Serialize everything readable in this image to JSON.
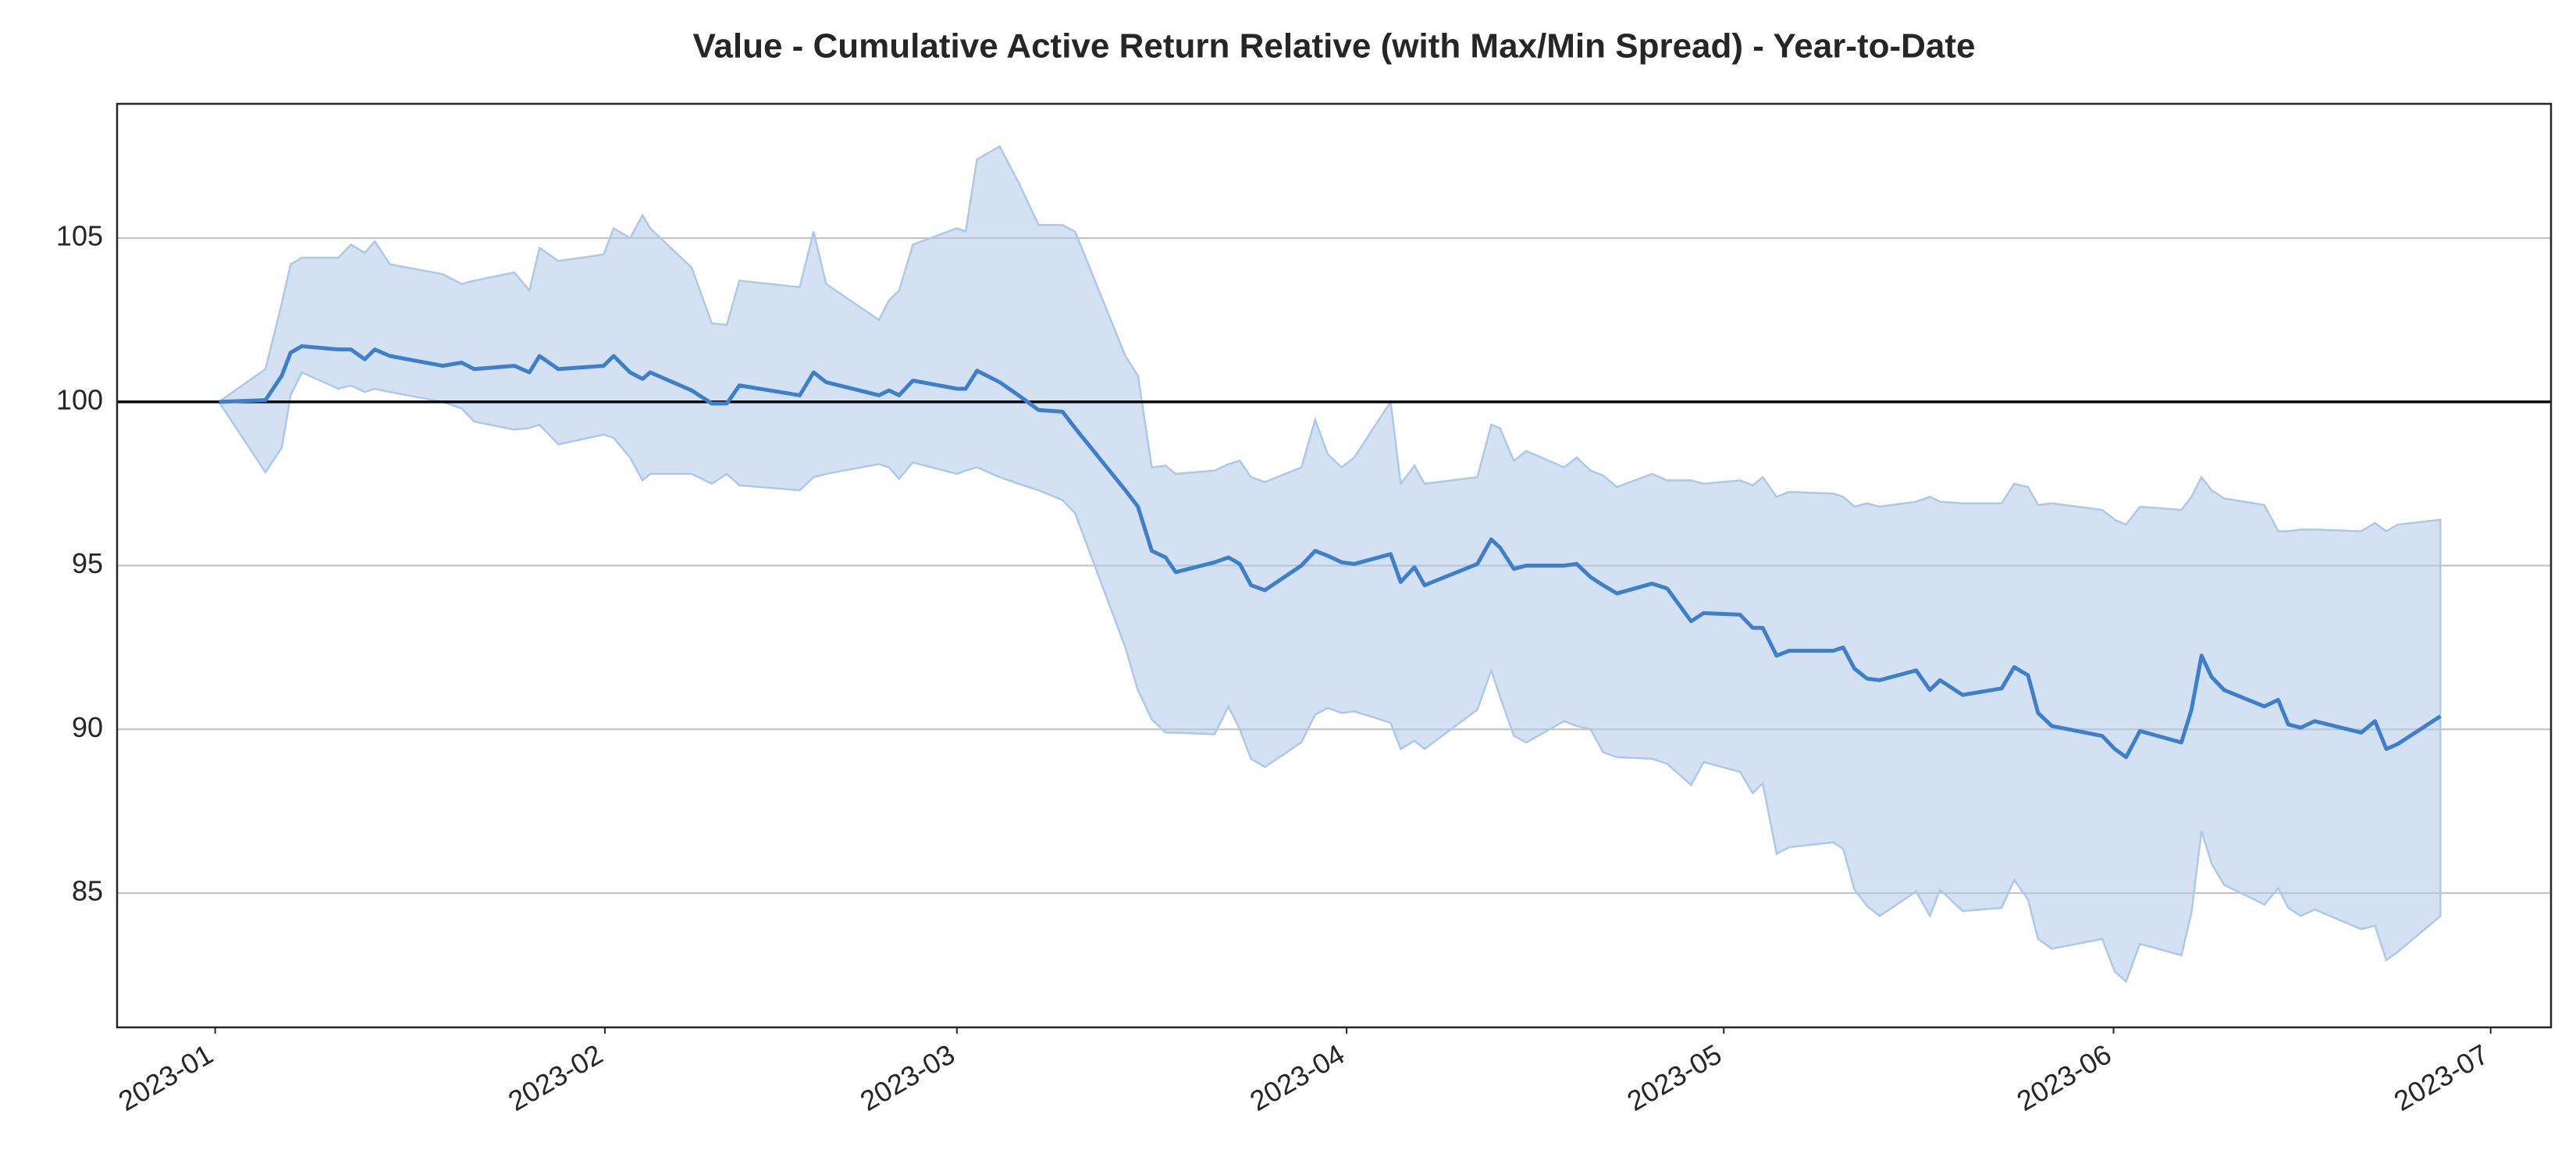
{
  "chart_data": {
    "type": "line",
    "title": "Value - Cumulative Active Return Relative (with Max/Min Spread) - Year-to-Date",
    "x": [
      0.3,
      4,
      5.3,
      6,
      6.9,
      9.8,
      10.8,
      11.9,
      12.7,
      13.9,
      18.1,
      19.6,
      20.6,
      23.8,
      25,
      25.8,
      27.3,
      30.9,
      31.7,
      33,
      34,
      34.6,
      37.9,
      39.5,
      40.7,
      41.7,
      46.5,
      47.6,
      48.6,
      52.8,
      53.6,
      54.4,
      55.5,
      59,
      59.7,
      60.6,
      62.4,
      63.9,
      65.5,
      67.4,
      68.4,
      72.4,
      73.4,
      74.5,
      75.6,
      76.4,
      79.5,
      80.6,
      81.5,
      82.4,
      83.5,
      86.4,
      87.5,
      88.5,
      89.6,
      90.6,
      93.5,
      94.3,
      95.4,
      96.2,
      100.4,
      101.5,
      102.2,
      103.3,
      104.3,
      107.3,
      108.3,
      109.4,
      110.4,
      111.5,
      114.3,
      115.5,
      117.4,
      118.4,
      121.3,
      122.3,
      123.1,
      124.2,
      125.2,
      128.7,
      129.5,
      130.4,
      131.4,
      132.4,
      135.3,
      136.4,
      137.2,
      139,
      142.1,
      143.1,
      144.2,
      145,
      146.1,
      150.1,
      151.1,
      152,
      153.1,
      156.4,
      157.2,
      158,
      158.8,
      159.8,
      163,
      164.1,
      164.9,
      165.9,
      167,
      170.7,
      171.8,
      172.7,
      173.6,
      177
    ],
    "series": [
      {
        "color": "#3f7fca",
        "values": [
          100,
          100.05,
          100.8,
          101.5,
          101.7,
          101.6,
          101.6,
          101.3,
          101.6,
          101.4,
          101.1,
          101.2,
          101.0,
          101.1,
          100.9,
          101.4,
          101.0,
          101.1,
          101.4,
          100.9,
          100.7,
          100.9,
          100.35,
          99.95,
          99.95,
          100.5,
          100.2,
          100.9,
          100.6,
          100.2,
          100.35,
          100.2,
          100.65,
          100.4,
          100.4,
          100.95,
          100.6,
          100.2,
          99.75,
          99.7,
          99.2,
          97.3,
          96.8,
          95.45,
          95.25,
          94.8,
          95.1,
          95.25,
          95.05,
          94.4,
          94.25,
          95.0,
          95.45,
          95.3,
          95.1,
          95.05,
          95.35,
          94.5,
          94.95,
          94.4,
          95.05,
          95.8,
          95.55,
          94.9,
          95.0,
          95.0,
          95.05,
          94.65,
          94.4,
          94.15,
          94.45,
          94.3,
          93.3,
          93.55,
          93.5,
          93.1,
          93.1,
          92.25,
          92.4,
          92.4,
          92.5,
          91.85,
          91.55,
          91.5,
          91.8,
          91.2,
          91.5,
          91.05,
          91.25,
          91.9,
          91.65,
          90.5,
          90.1,
          89.8,
          89.4,
          89.15,
          89.95,
          89.6,
          90.6,
          92.25,
          91.6,
          91.2,
          90.7,
          90.9,
          90.15,
          90.05,
          90.25,
          89.9,
          90.25,
          89.4,
          89.55,
          90.4
        ]
      }
    ],
    "band": {
      "color": "#aec8e8",
      "upper": [
        100,
        101.0,
        103.0,
        104.2,
        104.4,
        104.4,
        104.8,
        104.55,
        104.9,
        104.2,
        103.9,
        103.6,
        103.7,
        103.95,
        103.4,
        104.7,
        104.3,
        104.5,
        105.3,
        105.0,
        105.7,
        105.3,
        104.1,
        102.4,
        102.35,
        103.7,
        103.5,
        105.2,
        103.6,
        102.5,
        103.1,
        103.4,
        104.8,
        105.3,
        105.2,
        107.4,
        107.8,
        106.7,
        105.4,
        105.4,
        105.2,
        101.4,
        100.8,
        98.0,
        98.05,
        97.8,
        97.9,
        98.1,
        98.2,
        97.7,
        97.55,
        98.0,
        99.45,
        98.4,
        98.0,
        98.3,
        100.0,
        97.5,
        98.05,
        97.5,
        97.7,
        99.3,
        99.2,
        98.2,
        98.5,
        98.0,
        98.3,
        97.9,
        97.75,
        97.4,
        97.8,
        97.6,
        97.6,
        97.5,
        97.6,
        97.45,
        97.7,
        97.1,
        97.25,
        97.2,
        97.1,
        96.8,
        96.9,
        96.8,
        96.95,
        97.1,
        96.95,
        96.9,
        96.9,
        97.5,
        97.4,
        96.85,
        96.9,
        96.7,
        96.4,
        96.25,
        96.8,
        96.7,
        97.1,
        97.7,
        97.3,
        97.05,
        96.85,
        96.05,
        96.05,
        96.1,
        96.1,
        96.05,
        96.3,
        96.05,
        96.25,
        96.4
      ],
      "lower": [
        100,
        97.85,
        98.6,
        100.2,
        100.9,
        100.4,
        100.5,
        100.3,
        100.4,
        100.3,
        100.0,
        99.8,
        99.4,
        99.15,
        99.2,
        99.3,
        98.7,
        99.0,
        98.9,
        98.3,
        97.6,
        97.8,
        97.8,
        97.5,
        97.8,
        97.45,
        97.3,
        97.7,
        97.8,
        98.1,
        98.0,
        97.65,
        98.15,
        97.8,
        97.9,
        98.0,
        97.7,
        97.5,
        97.3,
        97.0,
        96.6,
        92.5,
        91.2,
        90.3,
        89.9,
        89.9,
        89.85,
        90.7,
        90.0,
        89.1,
        88.85,
        89.6,
        90.45,
        90.65,
        90.5,
        90.55,
        90.2,
        89.4,
        89.65,
        89.4,
        90.6,
        91.8,
        91.0,
        89.8,
        89.6,
        90.25,
        90.1,
        90.0,
        89.3,
        89.15,
        89.1,
        88.95,
        88.3,
        89.0,
        88.7,
        88.05,
        88.35,
        86.2,
        86.4,
        86.55,
        86.35,
        85.1,
        84.6,
        84.3,
        85.05,
        84.3,
        85.1,
        84.45,
        84.55,
        85.4,
        84.8,
        83.6,
        83.3,
        83.6,
        82.6,
        82.3,
        83.45,
        83.1,
        84.4,
        86.9,
        85.9,
        85.25,
        84.65,
        85.15,
        84.55,
        84.3,
        84.5,
        83.9,
        84.0,
        82.95,
        83.2,
        84.3
      ]
    },
    "reference_line": 100,
    "xlim": [
      -7.8,
      185.8
    ],
    "xticks": [
      {
        "value": 0,
        "label": "2023-01"
      },
      {
        "value": 31,
        "label": "2023-02"
      },
      {
        "value": 59,
        "label": "2023-03"
      },
      {
        "value": 90,
        "label": "2023-04"
      },
      {
        "value": 120,
        "label": "2023-05"
      },
      {
        "value": 151,
        "label": "2023-06"
      },
      {
        "value": 181,
        "label": "2023-07"
      }
    ],
    "ylim": [
      80.9,
      109.1
    ],
    "yticks": [
      85,
      90,
      95,
      100,
      105
    ],
    "grid": true
  }
}
